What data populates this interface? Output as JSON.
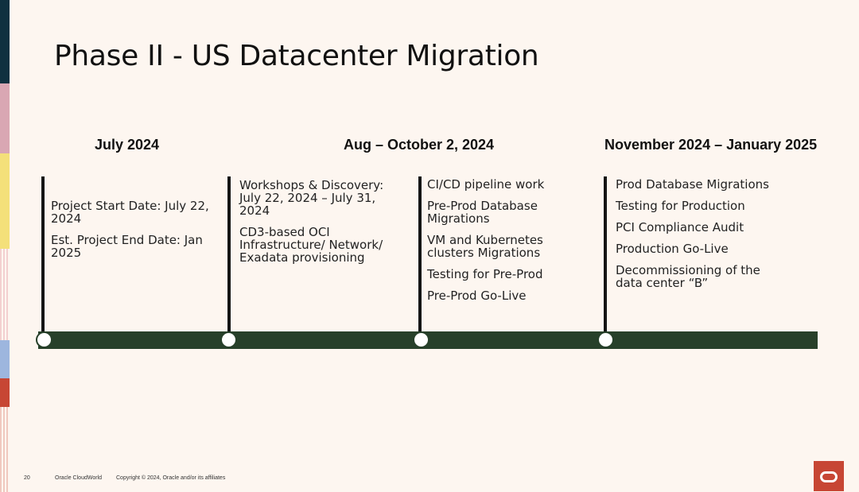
{
  "slide": {
    "title": "Phase II - US Datacenter Migration",
    "page_number": "20",
    "event": "Oracle CloudWorld",
    "copyright": "Copyright © 2024, Oracle and/or its affiliates"
  },
  "timeline": {
    "periods": [
      {
        "label": "July 2024"
      },
      {
        "label": "Aug – October 2, 2024"
      },
      {
        "label": "November 2024 – January 2025"
      }
    ],
    "columns": [
      {
        "items": [
          "Project Start Date: July 22, 2024",
          "Est. Project End Date: Jan 2025"
        ]
      },
      {
        "items": [
          "Workshops & Discovery: July 22, 2024 – July 31, 2024",
          "CD3-based OCI Infrastructure/ Network/ Exadata provisioning"
        ]
      },
      {
        "items": [
          "CI/CD pipeline work",
          "Pre-Prod Database Migrations",
          "VM and Kubernetes clusters Migrations",
          "Testing for Pre-Prod",
          "Pre-Prod Go-Live"
        ]
      },
      {
        "items": [
          "Prod Database Migrations",
          "Testing for Production",
          "PCI Compliance Audit",
          "Production Go-Live",
          "Decommissioning of the data center “B”"
        ]
      }
    ]
  },
  "colors": {
    "background": "#FDF6F0",
    "timeline_bar": "#27402A",
    "oracle_red": "#C74634",
    "edge_stripes": [
      "#10313F",
      "#D9A7B3",
      "#F4E07A",
      "#F8E8E8",
      "#9DB6DE",
      "#C74634",
      "#F3D3CB"
    ]
  },
  "icons": {
    "logo": "oracle-logo-icon"
  }
}
